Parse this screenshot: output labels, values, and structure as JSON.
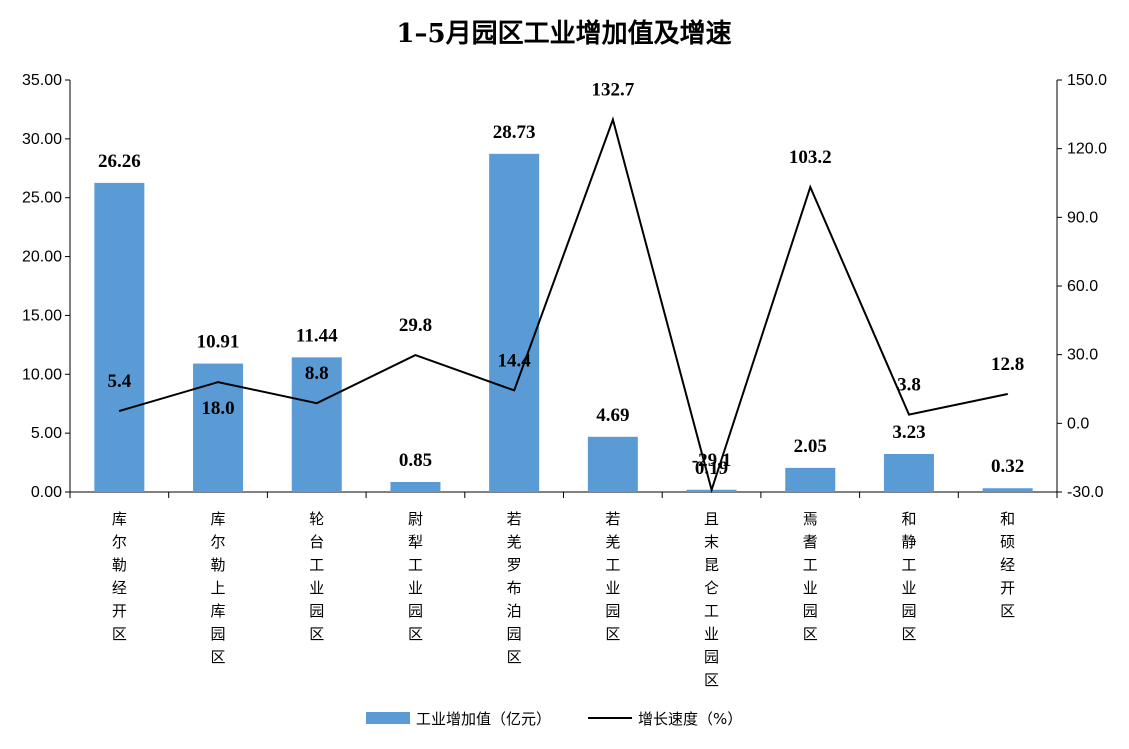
{
  "chart_data": {
    "type": "bar+line",
    "title": "1–5月园区工业增加值及增速",
    "categories": [
      "库尔勒经开区",
      "库尔勒上库园区",
      "轮台工业园区",
      "尉犁工业园区",
      "若羌罗布泊园区",
      "若羌工业园区",
      "且末昆仑工业园区",
      "焉耆工业园区",
      "和静工业园区",
      "和硕经开区"
    ],
    "series": [
      {
        "name": "工业增加值（亿元）",
        "type": "bar",
        "axis": "left",
        "color": "#5b9bd5",
        "values": [
          26.26,
          10.91,
          11.44,
          0.85,
          28.73,
          4.69,
          0.19,
          2.05,
          3.23,
          0.32
        ],
        "labels": [
          "26.26",
          "10.91",
          "11.44",
          "0.85",
          "28.73",
          "4.69",
          "0.19",
          "2.05",
          "3.23",
          "0.32"
        ]
      },
      {
        "name": "增长速度（%）",
        "type": "line",
        "axis": "right",
        "color": "#000000",
        "values": [
          5.4,
          18.0,
          8.8,
          29.8,
          14.4,
          132.7,
          -29.1,
          103.2,
          3.8,
          12.8
        ],
        "labels": [
          "5.4",
          "18.0",
          "8.8",
          "29.8",
          "14.4",
          "132.7",
          "-29.1",
          "103.2",
          "3.8",
          "12.8"
        ]
      }
    ],
    "y_left": {
      "min": 0,
      "max": 35,
      "step": 5,
      "tick_labels": [
        "0.00",
        "5.00",
        "10.00",
        "15.00",
        "20.00",
        "25.00",
        "30.00",
        "35.00"
      ]
    },
    "y_right": {
      "min": -30,
      "max": 150,
      "step": 30,
      "tick_labels": [
        "-30.0",
        "0.0",
        "30.0",
        "60.0",
        "90.0",
        "120.0",
        "150.0"
      ]
    },
    "grid": false,
    "legend_position": "bottom"
  }
}
